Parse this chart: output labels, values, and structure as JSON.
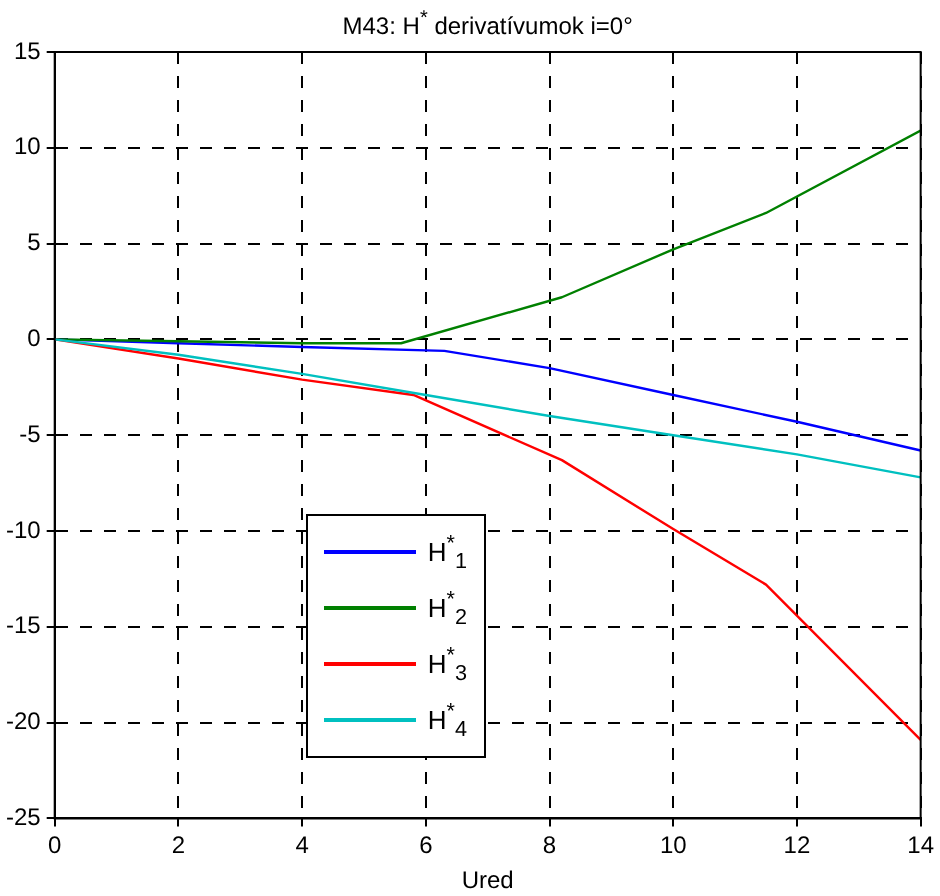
{
  "chart_data": {
    "type": "line",
    "title": "M43: H$^{*}$ derivatívumok i=0°",
    "xlabel": "Ured",
    "xlim": [
      0,
      14
    ],
    "xticks": [
      0,
      2,
      4,
      6,
      8,
      10,
      12,
      14
    ],
    "ylim": [
      -25,
      15
    ],
    "yticks": [
      -25,
      -20,
      -15,
      -10,
      -5,
      0,
      5,
      10,
      15
    ],
    "grid": true,
    "line_style": "solid",
    "marker": "none",
    "legend": "bottom left",
    "series": [
      {
        "name": "H$^{*}$$_{1}$",
        "color": "#0000ff",
        "x": [
          0,
          2,
          4,
          6.3,
          8,
          10,
          12,
          14
        ],
        "values": [
          0,
          -0.2,
          -0.4,
          -0.6,
          -1.5,
          -2.9,
          -4.3,
          -5.8
        ]
      },
      {
        "name": "H$^{*}$$_{2}$",
        "color": "#008000",
        "x": [
          0,
          2,
          4,
          5.6,
          8.2,
          10,
          11.5,
          14
        ],
        "values": [
          0,
          -0.1,
          -0.2,
          -0.2,
          2.2,
          4.7,
          6.6,
          10.9
        ]
      },
      {
        "name": "H$^{*}$$_{3}$",
        "color": "#ff0000",
        "x": [
          0,
          2,
          4,
          5.8,
          8.2,
          10,
          11.5,
          14
        ],
        "values": [
          0,
          -1,
          -2.1,
          -2.9,
          -6.3,
          -9.9,
          -12.8,
          -20.9
        ]
      },
      {
        "name": "H$^{*}$$_{4}$",
        "color": "#00c0c0",
        "x": [
          0,
          2,
          4,
          6,
          8,
          10,
          12,
          14
        ],
        "values": [
          0,
          -0.8,
          -1.8,
          -2.9,
          -4,
          -5,
          -6,
          -7.2
        ]
      }
    ]
  }
}
